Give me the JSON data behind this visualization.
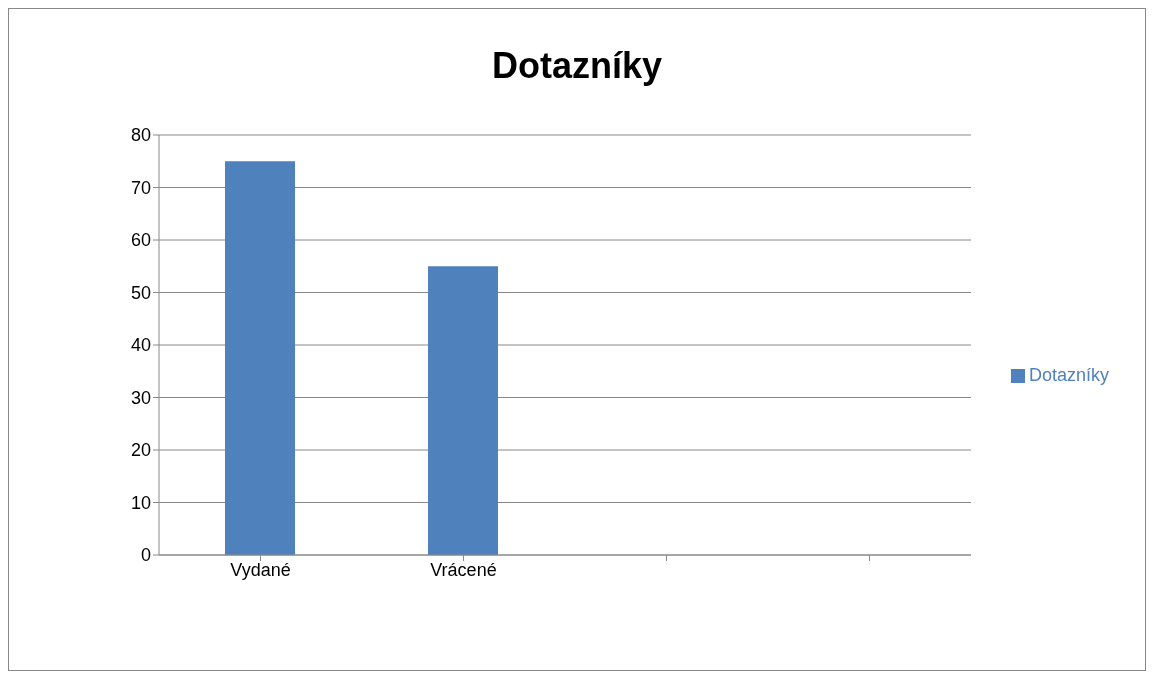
{
  "chart_data": {
    "type": "bar",
    "title": "Dotazníky",
    "categories": [
      "Vydané",
      "Vrácené",
      null,
      null
    ],
    "series": [
      {
        "name": "Dotazníky",
        "color": "#4f81bd",
        "values": [
          75,
          55,
          null,
          null
        ]
      }
    ],
    "ylim": [
      0,
      80
    ],
    "yticks": [
      0,
      10,
      20,
      30,
      40,
      50,
      60,
      70,
      80
    ],
    "grid": "y",
    "legend": "right"
  }
}
